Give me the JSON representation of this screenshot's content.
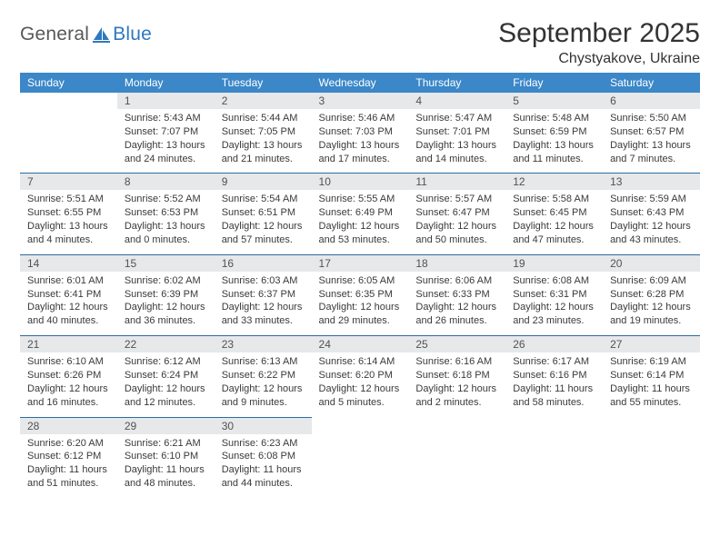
{
  "brand": {
    "part1": "General",
    "part2": "Blue"
  },
  "title": "September 2025",
  "location": "Chystyakove, Ukraine",
  "colors": {
    "header_bg": "#3b87c8",
    "header_text": "#ffffff",
    "daynum_bg": "#e6e8ea",
    "daynum_text": "#525252",
    "rule": "#2d6aa3",
    "body_text": "#3a3a3a",
    "title_text": "#333333",
    "logo_gray": "#585858",
    "logo_blue": "#2f78bf"
  },
  "weekdays": [
    "Sunday",
    "Monday",
    "Tuesday",
    "Wednesday",
    "Thursday",
    "Friday",
    "Saturday"
  ],
  "weeks": [
    [
      null,
      {
        "n": "1",
        "sr": "Sunrise: 5:43 AM",
        "ss": "Sunset: 7:07 PM",
        "dl": "Daylight: 13 hours and 24 minutes."
      },
      {
        "n": "2",
        "sr": "Sunrise: 5:44 AM",
        "ss": "Sunset: 7:05 PM",
        "dl": "Daylight: 13 hours and 21 minutes."
      },
      {
        "n": "3",
        "sr": "Sunrise: 5:46 AM",
        "ss": "Sunset: 7:03 PM",
        "dl": "Daylight: 13 hours and 17 minutes."
      },
      {
        "n": "4",
        "sr": "Sunrise: 5:47 AM",
        "ss": "Sunset: 7:01 PM",
        "dl": "Daylight: 13 hours and 14 minutes."
      },
      {
        "n": "5",
        "sr": "Sunrise: 5:48 AM",
        "ss": "Sunset: 6:59 PM",
        "dl": "Daylight: 13 hours and 11 minutes."
      },
      {
        "n": "6",
        "sr": "Sunrise: 5:50 AM",
        "ss": "Sunset: 6:57 PM",
        "dl": "Daylight: 13 hours and 7 minutes."
      }
    ],
    [
      {
        "n": "7",
        "sr": "Sunrise: 5:51 AM",
        "ss": "Sunset: 6:55 PM",
        "dl": "Daylight: 13 hours and 4 minutes."
      },
      {
        "n": "8",
        "sr": "Sunrise: 5:52 AM",
        "ss": "Sunset: 6:53 PM",
        "dl": "Daylight: 13 hours and 0 minutes."
      },
      {
        "n": "9",
        "sr": "Sunrise: 5:54 AM",
        "ss": "Sunset: 6:51 PM",
        "dl": "Daylight: 12 hours and 57 minutes."
      },
      {
        "n": "10",
        "sr": "Sunrise: 5:55 AM",
        "ss": "Sunset: 6:49 PM",
        "dl": "Daylight: 12 hours and 53 minutes."
      },
      {
        "n": "11",
        "sr": "Sunrise: 5:57 AM",
        "ss": "Sunset: 6:47 PM",
        "dl": "Daylight: 12 hours and 50 minutes."
      },
      {
        "n": "12",
        "sr": "Sunrise: 5:58 AM",
        "ss": "Sunset: 6:45 PM",
        "dl": "Daylight: 12 hours and 47 minutes."
      },
      {
        "n": "13",
        "sr": "Sunrise: 5:59 AM",
        "ss": "Sunset: 6:43 PM",
        "dl": "Daylight: 12 hours and 43 minutes."
      }
    ],
    [
      {
        "n": "14",
        "sr": "Sunrise: 6:01 AM",
        "ss": "Sunset: 6:41 PM",
        "dl": "Daylight: 12 hours and 40 minutes."
      },
      {
        "n": "15",
        "sr": "Sunrise: 6:02 AM",
        "ss": "Sunset: 6:39 PM",
        "dl": "Daylight: 12 hours and 36 minutes."
      },
      {
        "n": "16",
        "sr": "Sunrise: 6:03 AM",
        "ss": "Sunset: 6:37 PM",
        "dl": "Daylight: 12 hours and 33 minutes."
      },
      {
        "n": "17",
        "sr": "Sunrise: 6:05 AM",
        "ss": "Sunset: 6:35 PM",
        "dl": "Daylight: 12 hours and 29 minutes."
      },
      {
        "n": "18",
        "sr": "Sunrise: 6:06 AM",
        "ss": "Sunset: 6:33 PM",
        "dl": "Daylight: 12 hours and 26 minutes."
      },
      {
        "n": "19",
        "sr": "Sunrise: 6:08 AM",
        "ss": "Sunset: 6:31 PM",
        "dl": "Daylight: 12 hours and 23 minutes."
      },
      {
        "n": "20",
        "sr": "Sunrise: 6:09 AM",
        "ss": "Sunset: 6:28 PM",
        "dl": "Daylight: 12 hours and 19 minutes."
      }
    ],
    [
      {
        "n": "21",
        "sr": "Sunrise: 6:10 AM",
        "ss": "Sunset: 6:26 PM",
        "dl": "Daylight: 12 hours and 16 minutes."
      },
      {
        "n": "22",
        "sr": "Sunrise: 6:12 AM",
        "ss": "Sunset: 6:24 PM",
        "dl": "Daylight: 12 hours and 12 minutes."
      },
      {
        "n": "23",
        "sr": "Sunrise: 6:13 AM",
        "ss": "Sunset: 6:22 PM",
        "dl": "Daylight: 12 hours and 9 minutes."
      },
      {
        "n": "24",
        "sr": "Sunrise: 6:14 AM",
        "ss": "Sunset: 6:20 PM",
        "dl": "Daylight: 12 hours and 5 minutes."
      },
      {
        "n": "25",
        "sr": "Sunrise: 6:16 AM",
        "ss": "Sunset: 6:18 PM",
        "dl": "Daylight: 12 hours and 2 minutes."
      },
      {
        "n": "26",
        "sr": "Sunrise: 6:17 AM",
        "ss": "Sunset: 6:16 PM",
        "dl": "Daylight: 11 hours and 58 minutes."
      },
      {
        "n": "27",
        "sr": "Sunrise: 6:19 AM",
        "ss": "Sunset: 6:14 PM",
        "dl": "Daylight: 11 hours and 55 minutes."
      }
    ],
    [
      {
        "n": "28",
        "sr": "Sunrise: 6:20 AM",
        "ss": "Sunset: 6:12 PM",
        "dl": "Daylight: 11 hours and 51 minutes."
      },
      {
        "n": "29",
        "sr": "Sunrise: 6:21 AM",
        "ss": "Sunset: 6:10 PM",
        "dl": "Daylight: 11 hours and 48 minutes."
      },
      {
        "n": "30",
        "sr": "Sunrise: 6:23 AM",
        "ss": "Sunset: 6:08 PM",
        "dl": "Daylight: 11 hours and 44 minutes."
      },
      null,
      null,
      null,
      null
    ]
  ]
}
